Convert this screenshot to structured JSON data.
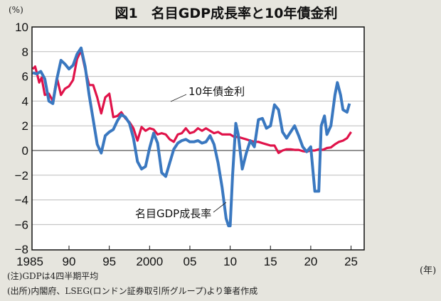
{
  "chart_data": {
    "type": "line",
    "title": "図1　名目GDP成長率と10年債金利",
    "ylabel": "(%)",
    "xlabel": "(年)",
    "ylim": [
      -8,
      10
    ],
    "xlim": [
      1985.3,
      2026.5
    ],
    "grid": true,
    "yticks": [
      10,
      8,
      6,
      4,
      2,
      0,
      -2,
      -4,
      -6,
      -8
    ],
    "ytick_labels": [
      "10",
      "8",
      "6",
      "4",
      "2",
      "0",
      "−2",
      "−4",
      "−6",
      "−8"
    ],
    "xticks": [
      1985,
      1990,
      1995,
      2000,
      2005,
      2010,
      2015,
      2020,
      2025
    ],
    "xtick_labels": [
      "1985",
      "90",
      "95",
      "2000",
      "05",
      "10",
      "15",
      "20",
      "25"
    ],
    "series": [
      {
        "name": "10年債金利",
        "color": "#e0134a",
        "x": [
          1985.5,
          1985.8,
          1986,
          1986.3,
          1986.6,
          1987,
          1987.5,
          1988,
          1988.5,
          1989,
          1989.5,
          1990,
          1990.5,
          1991,
          1991.5,
          1992,
          1992.5,
          1993,
          1993.5,
          1994,
          1994.5,
          1995,
          1995.5,
          1996,
          1996.5,
          1997,
          1997.5,
          1998,
          1998.5,
          1999,
          1999.5,
          2000,
          2000.5,
          2001,
          2001.5,
          2002,
          2002.5,
          2003,
          2003.5,
          2004,
          2004.5,
          2005,
          2005.5,
          2006,
          2006.5,
          2007,
          2007.5,
          2008,
          2008.5,
          2009,
          2009.5,
          2010,
          2010.5,
          2011,
          2011.5,
          2012,
          2012.5,
          2013,
          2013.5,
          2014,
          2014.5,
          2015,
          2015.5,
          2016,
          2016.5,
          2017,
          2017.5,
          2018,
          2018.5,
          2019,
          2019.5,
          2020,
          2020.5,
          2021,
          2021.5,
          2022,
          2022.5,
          2023,
          2023.5,
          2024,
          2024.5,
          2025
        ],
        "values": [
          6.6,
          6.8,
          6.3,
          5.5,
          5.9,
          4.5,
          4.6,
          4.0,
          5.9,
          4.5,
          5.0,
          5.2,
          5.7,
          7.4,
          8.1,
          6.6,
          5.3,
          5.3,
          4.3,
          3.0,
          4.3,
          4.6,
          2.7,
          2.8,
          3.1,
          2.6,
          2.3,
          1.8,
          0.8,
          1.9,
          1.6,
          1.8,
          1.7,
          1.3,
          1.4,
          1.3,
          0.9,
          0.7,
          1.3,
          1.4,
          1.8,
          1.4,
          1.5,
          1.8,
          1.6,
          1.8,
          1.6,
          1.4,
          1.5,
          1.3,
          1.3,
          1.3,
          1.1,
          1.1,
          1.0,
          0.9,
          0.8,
          0.7,
          0.7,
          0.6,
          0.5,
          0.4,
          0.4,
          -0.2,
          0.0,
          0.1,
          0.1,
          0.05,
          0.05,
          -0.05,
          -0.1,
          0.0,
          0.0,
          0.1,
          0.05,
          0.2,
          0.25,
          0.5,
          0.7,
          0.8,
          1.0,
          1.5
        ]
      },
      {
        "name": "名目GDP成長率",
        "color": "#3a78c0",
        "x": [
          1985.5,
          1986,
          1986.5,
          1987,
          1987.5,
          1988,
          1988.5,
          1989,
          1989.5,
          1990,
          1990.5,
          1991,
          1991.5,
          1992,
          1992.5,
          1993,
          1993.5,
          1994,
          1994.5,
          1995,
          1995.5,
          1996,
          1996.5,
          1997,
          1997.5,
          1998,
          1998.5,
          1999,
          1999.5,
          2000,
          2000.5,
          2001,
          2001.5,
          2002,
          2002.5,
          2003,
          2003.5,
          2004,
          2004.5,
          2005,
          2005.5,
          2006,
          2006.5,
          2007,
          2007.5,
          2008,
          2008.5,
          2009,
          2009.5,
          2009.8,
          2010,
          2010.3,
          2010.7,
          2011,
          2011.5,
          2012,
          2012.5,
          2013,
          2013.5,
          2014,
          2014.5,
          2015,
          2015.5,
          2016,
          2016.5,
          2017,
          2017.5,
          2018,
          2018.5,
          2019,
          2019.5,
          2020,
          2020.5,
          2021,
          2021.3,
          2021.7,
          2022,
          2022.5,
          2023,
          2023.3,
          2023.7,
          2024,
          2024.5,
          2024.8
        ],
        "values": [
          6.3,
          6.2,
          6.4,
          5.8,
          4.0,
          3.8,
          5.8,
          7.3,
          7.0,
          6.6,
          6.9,
          7.8,
          8.3,
          6.8,
          4.5,
          2.5,
          0.5,
          -0.2,
          1.2,
          1.5,
          1.7,
          2.4,
          2.9,
          2.7,
          2.2,
          1.0,
          -0.9,
          -1.5,
          -1.3,
          0.2,
          1.4,
          0.6,
          -1.8,
          -2.1,
          -1.0,
          0.1,
          0.6,
          0.8,
          0.9,
          0.7,
          0.7,
          0.8,
          0.6,
          0.7,
          1.2,
          0.5,
          -1.0,
          -3.0,
          -5.5,
          -6.1,
          -6.1,
          -2.0,
          2.2,
          1.3,
          -1.5,
          -0.2,
          0.8,
          0.3,
          2.5,
          2.6,
          1.8,
          2.0,
          3.7,
          3.3,
          1.5,
          1.0,
          1.5,
          2.0,
          1.2,
          0.3,
          -0.1,
          0.3,
          -3.3,
          -3.3,
          2.0,
          2.8,
          1.3,
          2.0,
          4.5,
          5.5,
          4.5,
          3.3,
          3.1,
          3.8
        ]
      }
    ]
  },
  "notes": {
    "note": "(注)GDPは4四半期平均",
    "source": "(出所)内閣府、LSEG(ロンドン証券取引所グループ)より筆者作成"
  }
}
